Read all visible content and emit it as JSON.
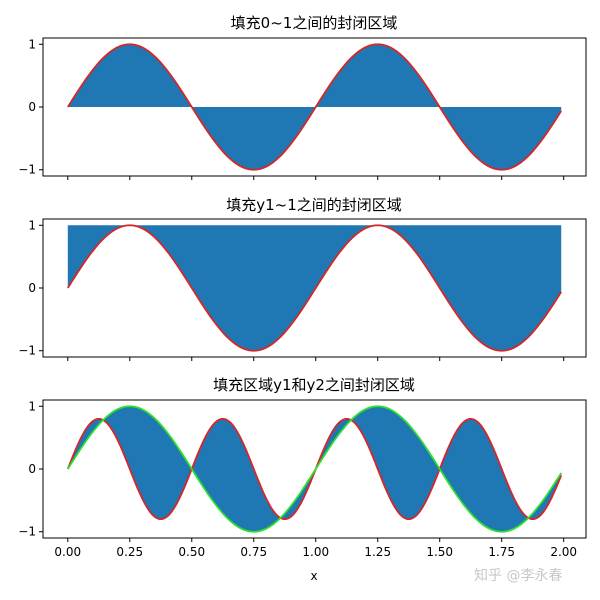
{
  "chart_data": [
    {
      "type": "area",
      "title": "填充0~1之间的封闭区域",
      "x": {
        "start": 0,
        "end": 1.99,
        "step": 0.01
      },
      "series": [
        {
          "formula": "sin(2*pi*x)",
          "color": "#d62728"
        }
      ],
      "fill": {
        "between": [
          "y1",
          0
        ],
        "color": "#1f77b4"
      },
      "xlim": [
        -0.1,
        2.09
      ],
      "ylim": [
        -1.1,
        1.1
      ],
      "yticks": [
        1,
        0,
        -1
      ],
      "ytick_labels": [
        "1",
        "0",
        "−1"
      ],
      "xticks": [
        0,
        0.25,
        0.5,
        0.75,
        1.0,
        1.25,
        1.5,
        1.75,
        2.0
      ],
      "xtick_labels_visible": false
    },
    {
      "type": "area",
      "title": "填充y1~1之间的封闭区域",
      "x": {
        "start": 0,
        "end": 1.99,
        "step": 0.01
      },
      "series": [
        {
          "formula": "sin(2*pi*x)",
          "color": "#d62728"
        }
      ],
      "fill": {
        "between": [
          "y1",
          1
        ],
        "color": "#1f77b4"
      },
      "xlim": [
        -0.1,
        2.09
      ],
      "ylim": [
        -1.1,
        1.1
      ],
      "yticks": [
        1,
        0,
        -1
      ],
      "ytick_labels": [
        "1",
        "0",
        "−1"
      ],
      "xticks": [
        0,
        0.25,
        0.5,
        0.75,
        1.0,
        1.25,
        1.5,
        1.75,
        2.0
      ],
      "xtick_labels_visible": false
    },
    {
      "type": "area",
      "title": "填充区域y1和y2之间封闭区域",
      "xlabel": "x",
      "x": {
        "start": 0,
        "end": 1.99,
        "step": 0.01
      },
      "series": [
        {
          "formula": "0.8*sin(4*pi*x)",
          "color": "#d62728"
        },
        {
          "formula": "sin(2*pi*x)",
          "color": "#2de02d"
        }
      ],
      "fill": {
        "between": [
          "y1",
          "y2"
        ],
        "color": "#1f77b4"
      },
      "xlim": [
        -0.1,
        2.09
      ],
      "ylim": [
        -1.1,
        1.1
      ],
      "yticks": [
        1,
        0,
        -1
      ],
      "ytick_labels": [
        "1",
        "0",
        "−1"
      ],
      "xticks": [
        0,
        0.25,
        0.5,
        0.75,
        1.0,
        1.25,
        1.5,
        1.75,
        2.0
      ],
      "xtick_labels": [
        "0.00",
        "0.25",
        "0.50",
        "0.75",
        "1.00",
        "1.25",
        "1.50",
        "1.75",
        "2.00"
      ],
      "xtick_labels_visible": true
    }
  ],
  "watermark": "知乎 @李永春",
  "colors": {
    "fill": "#1f77b4",
    "line_red": "#d62728",
    "line_green": "#2de02d",
    "axis": "#000000"
  }
}
